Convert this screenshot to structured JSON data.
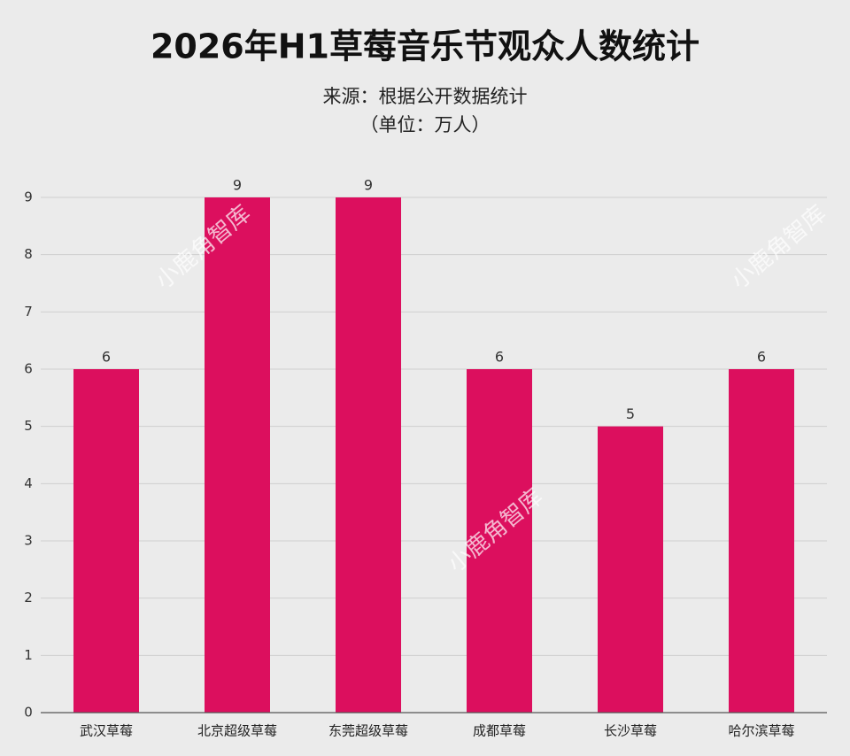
{
  "chart_data": {
    "type": "bar",
    "title": "2026年H1草莓音乐节观众人数统计",
    "subtitle": [
      "来源：根据公开数据统计",
      "（单位：万人）"
    ],
    "watermark": "小鹿角智库",
    "categories": [
      "武汉草莓",
      "北京超级草莓",
      "东莞超级草莓",
      "成都草莓",
      "长沙草莓",
      "哈尔滨草莓"
    ],
    "values": [
      6,
      9,
      9,
      6,
      5,
      6
    ],
    "color": "#dc0f5e",
    "ylim": [
      0,
      9
    ],
    "yticks": [
      0,
      1,
      2,
      3,
      4,
      5,
      6,
      7,
      8,
      9
    ],
    "grid": true
  }
}
